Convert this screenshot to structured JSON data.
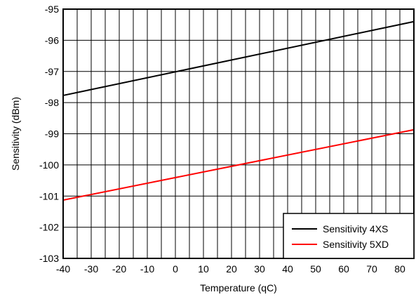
{
  "chart_data": {
    "type": "line",
    "xlabel": "Temperature (qC)",
    "ylabel": "Sensitivity (dBm)",
    "xlim": [
      -40,
      85
    ],
    "ylim": [
      -103,
      -95
    ],
    "x_ticks": [
      -40,
      -30,
      -20,
      -10,
      0,
      10,
      20,
      30,
      40,
      50,
      60,
      70,
      80
    ],
    "x_tick_labels": [
      "-40",
      "-30",
      "-20",
      "-10",
      "0",
      "10",
      "20",
      "30",
      "40",
      "50",
      "60",
      "70",
      "80"
    ],
    "y_ticks": [
      -95,
      -96,
      -97,
      -98,
      -99,
      -100,
      -101,
      -102,
      -103
    ],
    "y_tick_labels": [
      "-95",
      "-96",
      "-97",
      "-98",
      "-99",
      "-100",
      "-101",
      "-102",
      "-103"
    ],
    "x_grid_step": 5,
    "y_grid_step": 1,
    "grid": true,
    "legend_position": "bottom-right",
    "series": [
      {
        "name": "Sensitivity 4XS",
        "color": "#000000",
        "x": [
          -40,
          85
        ],
        "y": [
          -97.77,
          -95.4
        ]
      },
      {
        "name": "Sensitivity 5XD",
        "color": "#ff0000",
        "x": [
          -40,
          85
        ],
        "y": [
          -101.13,
          -98.87
        ]
      }
    ]
  }
}
